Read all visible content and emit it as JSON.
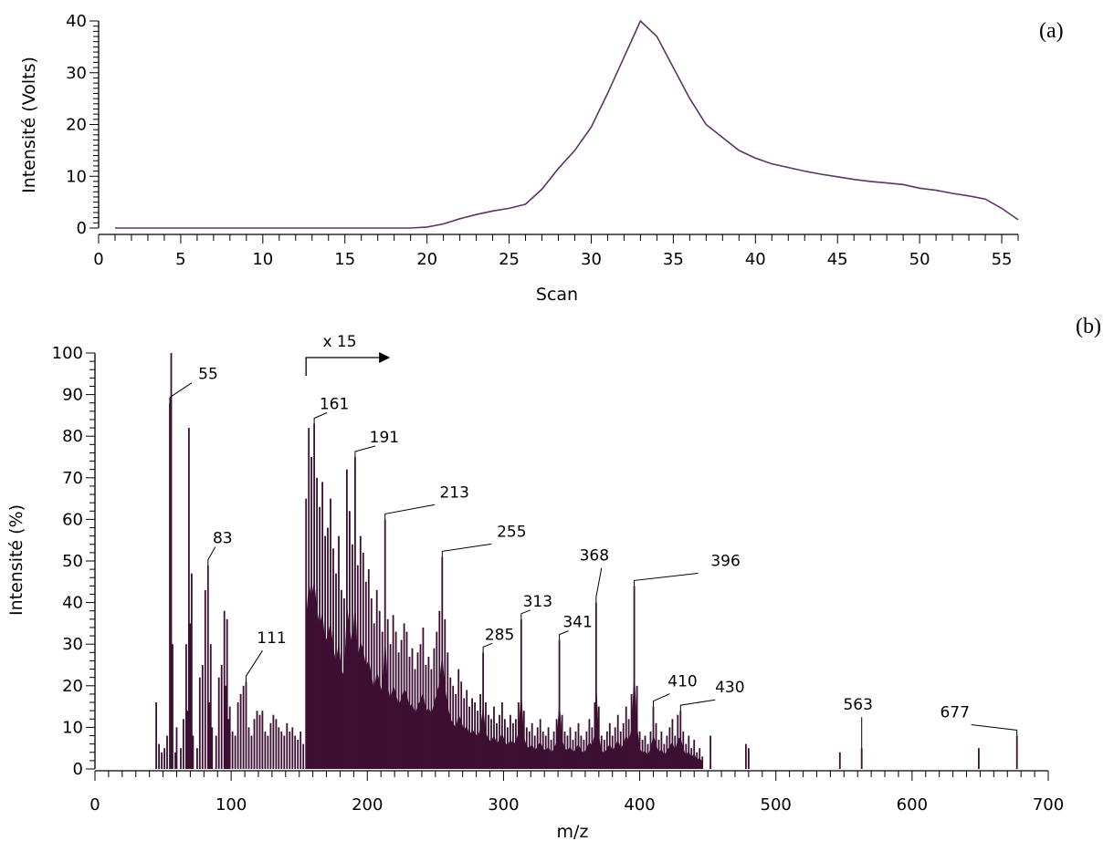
{
  "chart_data": [
    {
      "type": "line",
      "panel_label": "(a)",
      "xlabel": "Scan",
      "ylabel": "Intensité (Volts)",
      "xlim": [
        0,
        56
      ],
      "ylim": [
        0,
        40
      ],
      "xticks": [
        "0",
        "5",
        "10",
        "15",
        "20",
        "25",
        "30",
        "35",
        "40",
        "45",
        "50",
        "55"
      ],
      "yticks": [
        "0",
        "10",
        "20",
        "30",
        "40"
      ],
      "grid": false,
      "color": "#5a3566",
      "series": [
        {
          "x": [
            1,
            2,
            3,
            4,
            5,
            6,
            7,
            8,
            9,
            10,
            11,
            12,
            13,
            14,
            15,
            16,
            17,
            18,
            19,
            20,
            21,
            22,
            23,
            24,
            25,
            26,
            27,
            28,
            29,
            30,
            31,
            32,
            33,
            34,
            35,
            36,
            37,
            38,
            39,
            40,
            41,
            42,
            43,
            44,
            45,
            46,
            47,
            48,
            49,
            50,
            51,
            52,
            53,
            54,
            55,
            56
          ],
          "y": [
            0,
            0,
            0,
            0,
            0,
            0,
            0,
            0,
            0,
            0,
            0,
            0,
            0,
            0,
            0,
            0,
            0,
            0,
            0,
            0.2,
            0.8,
            1.8,
            2.6,
            3.3,
            3.8,
            4.6,
            7.5,
            11.5,
            15,
            19.5,
            26,
            33,
            40,
            37,
            31,
            25,
            20,
            17.5,
            15,
            13.5,
            12.4,
            11.7,
            11,
            10.4,
            9.9,
            9.4,
            9,
            8.7,
            8.4,
            7.7,
            7.3,
            6.7,
            6.2,
            5.6,
            3.8,
            1.6
          ]
        }
      ]
    },
    {
      "type": "bar",
      "panel_label": "(b)",
      "xlabel": "m/z",
      "ylabel": "Intensité (%)",
      "xlim": [
        0,
        700
      ],
      "ylim": [
        0,
        100
      ],
      "xticks": [
        "0",
        "100",
        "200",
        "300",
        "400",
        "500",
        "600",
        "700"
      ],
      "yticks": [
        "0",
        "10",
        "20",
        "30",
        "40",
        "50",
        "60",
        "70",
        "80",
        "90",
        "100"
      ],
      "grid": false,
      "color": "#3d0f33",
      "magnification": {
        "label": "x 15",
        "from_mz": 155
      },
      "peaks": [
        {
          "mz": 45,
          "value": 16
        },
        {
          "mz": 47,
          "value": 6
        },
        {
          "mz": 49,
          "value": 4
        },
        {
          "mz": 51,
          "value": 5
        },
        {
          "mz": 53,
          "value": 8
        },
        {
          "mz": 55,
          "value": 88
        },
        {
          "mz": 56,
          "value": 100
        },
        {
          "mz": 57,
          "value": 30
        },
        {
          "mz": 59,
          "value": 4
        },
        {
          "mz": 60,
          "value": 10
        },
        {
          "mz": 63,
          "value": 5
        },
        {
          "mz": 65,
          "value": 12
        },
        {
          "mz": 67,
          "value": 30
        },
        {
          "mz": 68,
          "value": 14
        },
        {
          "mz": 69,
          "value": 82
        },
        {
          "mz": 70,
          "value": 35
        },
        {
          "mz": 71,
          "value": 47
        },
        {
          "mz": 72,
          "value": 8
        },
        {
          "mz": 75,
          "value": 5
        },
        {
          "mz": 77,
          "value": 22
        },
        {
          "mz": 79,
          "value": 25
        },
        {
          "mz": 81,
          "value": 43
        },
        {
          "mz": 83,
          "value": 49
        },
        {
          "mz": 84,
          "value": 16
        },
        {
          "mz": 85,
          "value": 30
        },
        {
          "mz": 86,
          "value": 10
        },
        {
          "mz": 89,
          "value": 8
        },
        {
          "mz": 91,
          "value": 22
        },
        {
          "mz": 93,
          "value": 25
        },
        {
          "mz": 95,
          "value": 38
        },
        {
          "mz": 96,
          "value": 20
        },
        {
          "mz": 97,
          "value": 36
        },
        {
          "mz": 98,
          "value": 12
        },
        {
          "mz": 99,
          "value": 15
        },
        {
          "mz": 101,
          "value": 9
        },
        {
          "mz": 103,
          "value": 8
        },
        {
          "mz": 105,
          "value": 16
        },
        {
          "mz": 107,
          "value": 18
        },
        {
          "mz": 109,
          "value": 20
        },
        {
          "mz": 111,
          "value": 21
        },
        {
          "mz": 113,
          "value": 10
        },
        {
          "mz": 115,
          "value": 8
        },
        {
          "mz": 117,
          "value": 12
        },
        {
          "mz": 119,
          "value": 14
        },
        {
          "mz": 121,
          "value": 13
        },
        {
          "mz": 123,
          "value": 14
        },
        {
          "mz": 125,
          "value": 9
        },
        {
          "mz": 127,
          "value": 8
        },
        {
          "mz": 129,
          "value": 11
        },
        {
          "mz": 131,
          "value": 13
        },
        {
          "mz": 133,
          "value": 12
        },
        {
          "mz": 135,
          "value": 10
        },
        {
          "mz": 137,
          "value": 9
        },
        {
          "mz": 139,
          "value": 8
        },
        {
          "mz": 141,
          "value": 11
        },
        {
          "mz": 143,
          "value": 9
        },
        {
          "mz": 145,
          "value": 10
        },
        {
          "mz": 147,
          "value": 8
        },
        {
          "mz": 149,
          "value": 7
        },
        {
          "mz": 151,
          "value": 9
        },
        {
          "mz": 153,
          "value": 6
        },
        {
          "mz": 155,
          "value": 65
        },
        {
          "mz": 157,
          "value": 82
        },
        {
          "mz": 159,
          "value": 75
        },
        {
          "mz": 161,
          "value": 83
        },
        {
          "mz": 163,
          "value": 70
        },
        {
          "mz": 165,
          "value": 63
        },
        {
          "mz": 167,
          "value": 69
        },
        {
          "mz": 169,
          "value": 56
        },
        {
          "mz": 171,
          "value": 58
        },
        {
          "mz": 173,
          "value": 65
        },
        {
          "mz": 175,
          "value": 53
        },
        {
          "mz": 177,
          "value": 47
        },
        {
          "mz": 179,
          "value": 56
        },
        {
          "mz": 181,
          "value": 43
        },
        {
          "mz": 183,
          "value": 41
        },
        {
          "mz": 185,
          "value": 72
        },
        {
          "mz": 187,
          "value": 62
        },
        {
          "mz": 189,
          "value": 54
        },
        {
          "mz": 191,
          "value": 75
        },
        {
          "mz": 193,
          "value": 49
        },
        {
          "mz": 195,
          "value": 56
        },
        {
          "mz": 197,
          "value": 52
        },
        {
          "mz": 199,
          "value": 45
        },
        {
          "mz": 201,
          "value": 48
        },
        {
          "mz": 203,
          "value": 41
        },
        {
          "mz": 205,
          "value": 35
        },
        {
          "mz": 207,
          "value": 43
        },
        {
          "mz": 209,
          "value": 38
        },
        {
          "mz": 211,
          "value": 33
        },
        {
          "mz": 213,
          "value": 60
        },
        {
          "mz": 215,
          "value": 36
        },
        {
          "mz": 217,
          "value": 30
        },
        {
          "mz": 219,
          "value": 37
        },
        {
          "mz": 221,
          "value": 33
        },
        {
          "mz": 223,
          "value": 28
        },
        {
          "mz": 225,
          "value": 31
        },
        {
          "mz": 227,
          "value": 35
        },
        {
          "mz": 229,
          "value": 33
        },
        {
          "mz": 231,
          "value": 27
        },
        {
          "mz": 233,
          "value": 29
        },
        {
          "mz": 235,
          "value": 24
        },
        {
          "mz": 237,
          "value": 28
        },
        {
          "mz": 239,
          "value": 30
        },
        {
          "mz": 241,
          "value": 34
        },
        {
          "mz": 243,
          "value": 25
        },
        {
          "mz": 245,
          "value": 27
        },
        {
          "mz": 247,
          "value": 24
        },
        {
          "mz": 249,
          "value": 29
        },
        {
          "mz": 251,
          "value": 33
        },
        {
          "mz": 253,
          "value": 38
        },
        {
          "mz": 255,
          "value": 51
        },
        {
          "mz": 257,
          "value": 36
        },
        {
          "mz": 259,
          "value": 28
        },
        {
          "mz": 261,
          "value": 22
        },
        {
          "mz": 263,
          "value": 20
        },
        {
          "mz": 265,
          "value": 18
        },
        {
          "mz": 267,
          "value": 24
        },
        {
          "mz": 269,
          "value": 21
        },
        {
          "mz": 271,
          "value": 17
        },
        {
          "mz": 273,
          "value": 19
        },
        {
          "mz": 275,
          "value": 15
        },
        {
          "mz": 277,
          "value": 17
        },
        {
          "mz": 279,
          "value": 16
        },
        {
          "mz": 281,
          "value": 14
        },
        {
          "mz": 283,
          "value": 18
        },
        {
          "mz": 285,
          "value": 28
        },
        {
          "mz": 287,
          "value": 16
        },
        {
          "mz": 289,
          "value": 13
        },
        {
          "mz": 291,
          "value": 12
        },
        {
          "mz": 293,
          "value": 15
        },
        {
          "mz": 295,
          "value": 11
        },
        {
          "mz": 297,
          "value": 13
        },
        {
          "mz": 299,
          "value": 16
        },
        {
          "mz": 301,
          "value": 12
        },
        {
          "mz": 303,
          "value": 10
        },
        {
          "mz": 305,
          "value": 13
        },
        {
          "mz": 307,
          "value": 11
        },
        {
          "mz": 309,
          "value": 12
        },
        {
          "mz": 311,
          "value": 16
        },
        {
          "mz": 313,
          "value": 36
        },
        {
          "mz": 315,
          "value": 14
        },
        {
          "mz": 317,
          "value": 10
        },
        {
          "mz": 319,
          "value": 9
        },
        {
          "mz": 321,
          "value": 11
        },
        {
          "mz": 323,
          "value": 8
        },
        {
          "mz": 325,
          "value": 10
        },
        {
          "mz": 327,
          "value": 12
        },
        {
          "mz": 329,
          "value": 9
        },
        {
          "mz": 331,
          "value": 8
        },
        {
          "mz": 333,
          "value": 10
        },
        {
          "mz": 335,
          "value": 7
        },
        {
          "mz": 337,
          "value": 9
        },
        {
          "mz": 339,
          "value": 12
        },
        {
          "mz": 341,
          "value": 31
        },
        {
          "mz": 343,
          "value": 13
        },
        {
          "mz": 345,
          "value": 9
        },
        {
          "mz": 347,
          "value": 8
        },
        {
          "mz": 349,
          "value": 10
        },
        {
          "mz": 351,
          "value": 7
        },
        {
          "mz": 353,
          "value": 9
        },
        {
          "mz": 355,
          "value": 11
        },
        {
          "mz": 357,
          "value": 8
        },
        {
          "mz": 359,
          "value": 7
        },
        {
          "mz": 361,
          "value": 9
        },
        {
          "mz": 363,
          "value": 12
        },
        {
          "mz": 365,
          "value": 10
        },
        {
          "mz": 367,
          "value": 16
        },
        {
          "mz": 368,
          "value": 40
        },
        {
          "mz": 370,
          "value": 15
        },
        {
          "mz": 372,
          "value": 8
        },
        {
          "mz": 374,
          "value": 7
        },
        {
          "mz": 376,
          "value": 9
        },
        {
          "mz": 378,
          "value": 11
        },
        {
          "mz": 380,
          "value": 8
        },
        {
          "mz": 382,
          "value": 10
        },
        {
          "mz": 384,
          "value": 13
        },
        {
          "mz": 386,
          "value": 9
        },
        {
          "mz": 388,
          "value": 11
        },
        {
          "mz": 390,
          "value": 15
        },
        {
          "mz": 392,
          "value": 12
        },
        {
          "mz": 394,
          "value": 18
        },
        {
          "mz": 396,
          "value": 44
        },
        {
          "mz": 398,
          "value": 20
        },
        {
          "mz": 400,
          "value": 9
        },
        {
          "mz": 402,
          "value": 7
        },
        {
          "mz": 404,
          "value": 8
        },
        {
          "mz": 406,
          "value": 6
        },
        {
          "mz": 408,
          "value": 9
        },
        {
          "mz": 410,
          "value": 15
        },
        {
          "mz": 412,
          "value": 11
        },
        {
          "mz": 414,
          "value": 7
        },
        {
          "mz": 416,
          "value": 9
        },
        {
          "mz": 418,
          "value": 6
        },
        {
          "mz": 420,
          "value": 8
        },
        {
          "mz": 422,
          "value": 10
        },
        {
          "mz": 424,
          "value": 12
        },
        {
          "mz": 426,
          "value": 8
        },
        {
          "mz": 428,
          "value": 13
        },
        {
          "mz": 430,
          "value": 14
        },
        {
          "mz": 432,
          "value": 9
        },
        {
          "mz": 434,
          "value": 6
        },
        {
          "mz": 436,
          "value": 8
        },
        {
          "mz": 438,
          "value": 5
        },
        {
          "mz": 440,
          "value": 7
        },
        {
          "mz": 442,
          "value": 4
        },
        {
          "mz": 444,
          "value": 5
        },
        {
          "mz": 446,
          "value": 3
        },
        {
          "mz": 452,
          "value": 8
        },
        {
          "mz": 478,
          "value": 6
        },
        {
          "mz": 480,
          "value": 5
        },
        {
          "mz": 547,
          "value": 4
        },
        {
          "mz": 563,
          "value": 5
        },
        {
          "mz": 649,
          "value": 5
        },
        {
          "mz": 677,
          "value": 8
        }
      ],
      "annotations": [
        {
          "label": "55",
          "mz": 55,
          "value": 88
        },
        {
          "label": "83",
          "mz": 83,
          "value": 49
        },
        {
          "label": "111",
          "mz": 111,
          "value": 21
        },
        {
          "label": "161",
          "mz": 161,
          "value": 83
        },
        {
          "label": "191",
          "mz": 191,
          "value": 75
        },
        {
          "label": "213",
          "mz": 213,
          "value": 60
        },
        {
          "label": "255",
          "mz": 255,
          "value": 51
        },
        {
          "label": "285",
          "mz": 285,
          "value": 28
        },
        {
          "label": "313",
          "mz": 313,
          "value": 36
        },
        {
          "label": "341",
          "mz": 341,
          "value": 31
        },
        {
          "label": "368",
          "mz": 368,
          "value": 40
        },
        {
          "label": "396",
          "mz": 396,
          "value": 44
        },
        {
          "label": "410",
          "mz": 410,
          "value": 15
        },
        {
          "label": "430",
          "mz": 430,
          "value": 14
        },
        {
          "label": "563",
          "mz": 563,
          "value": 5
        },
        {
          "label": "677",
          "mz": 677,
          "value": 8
        }
      ]
    }
  ]
}
